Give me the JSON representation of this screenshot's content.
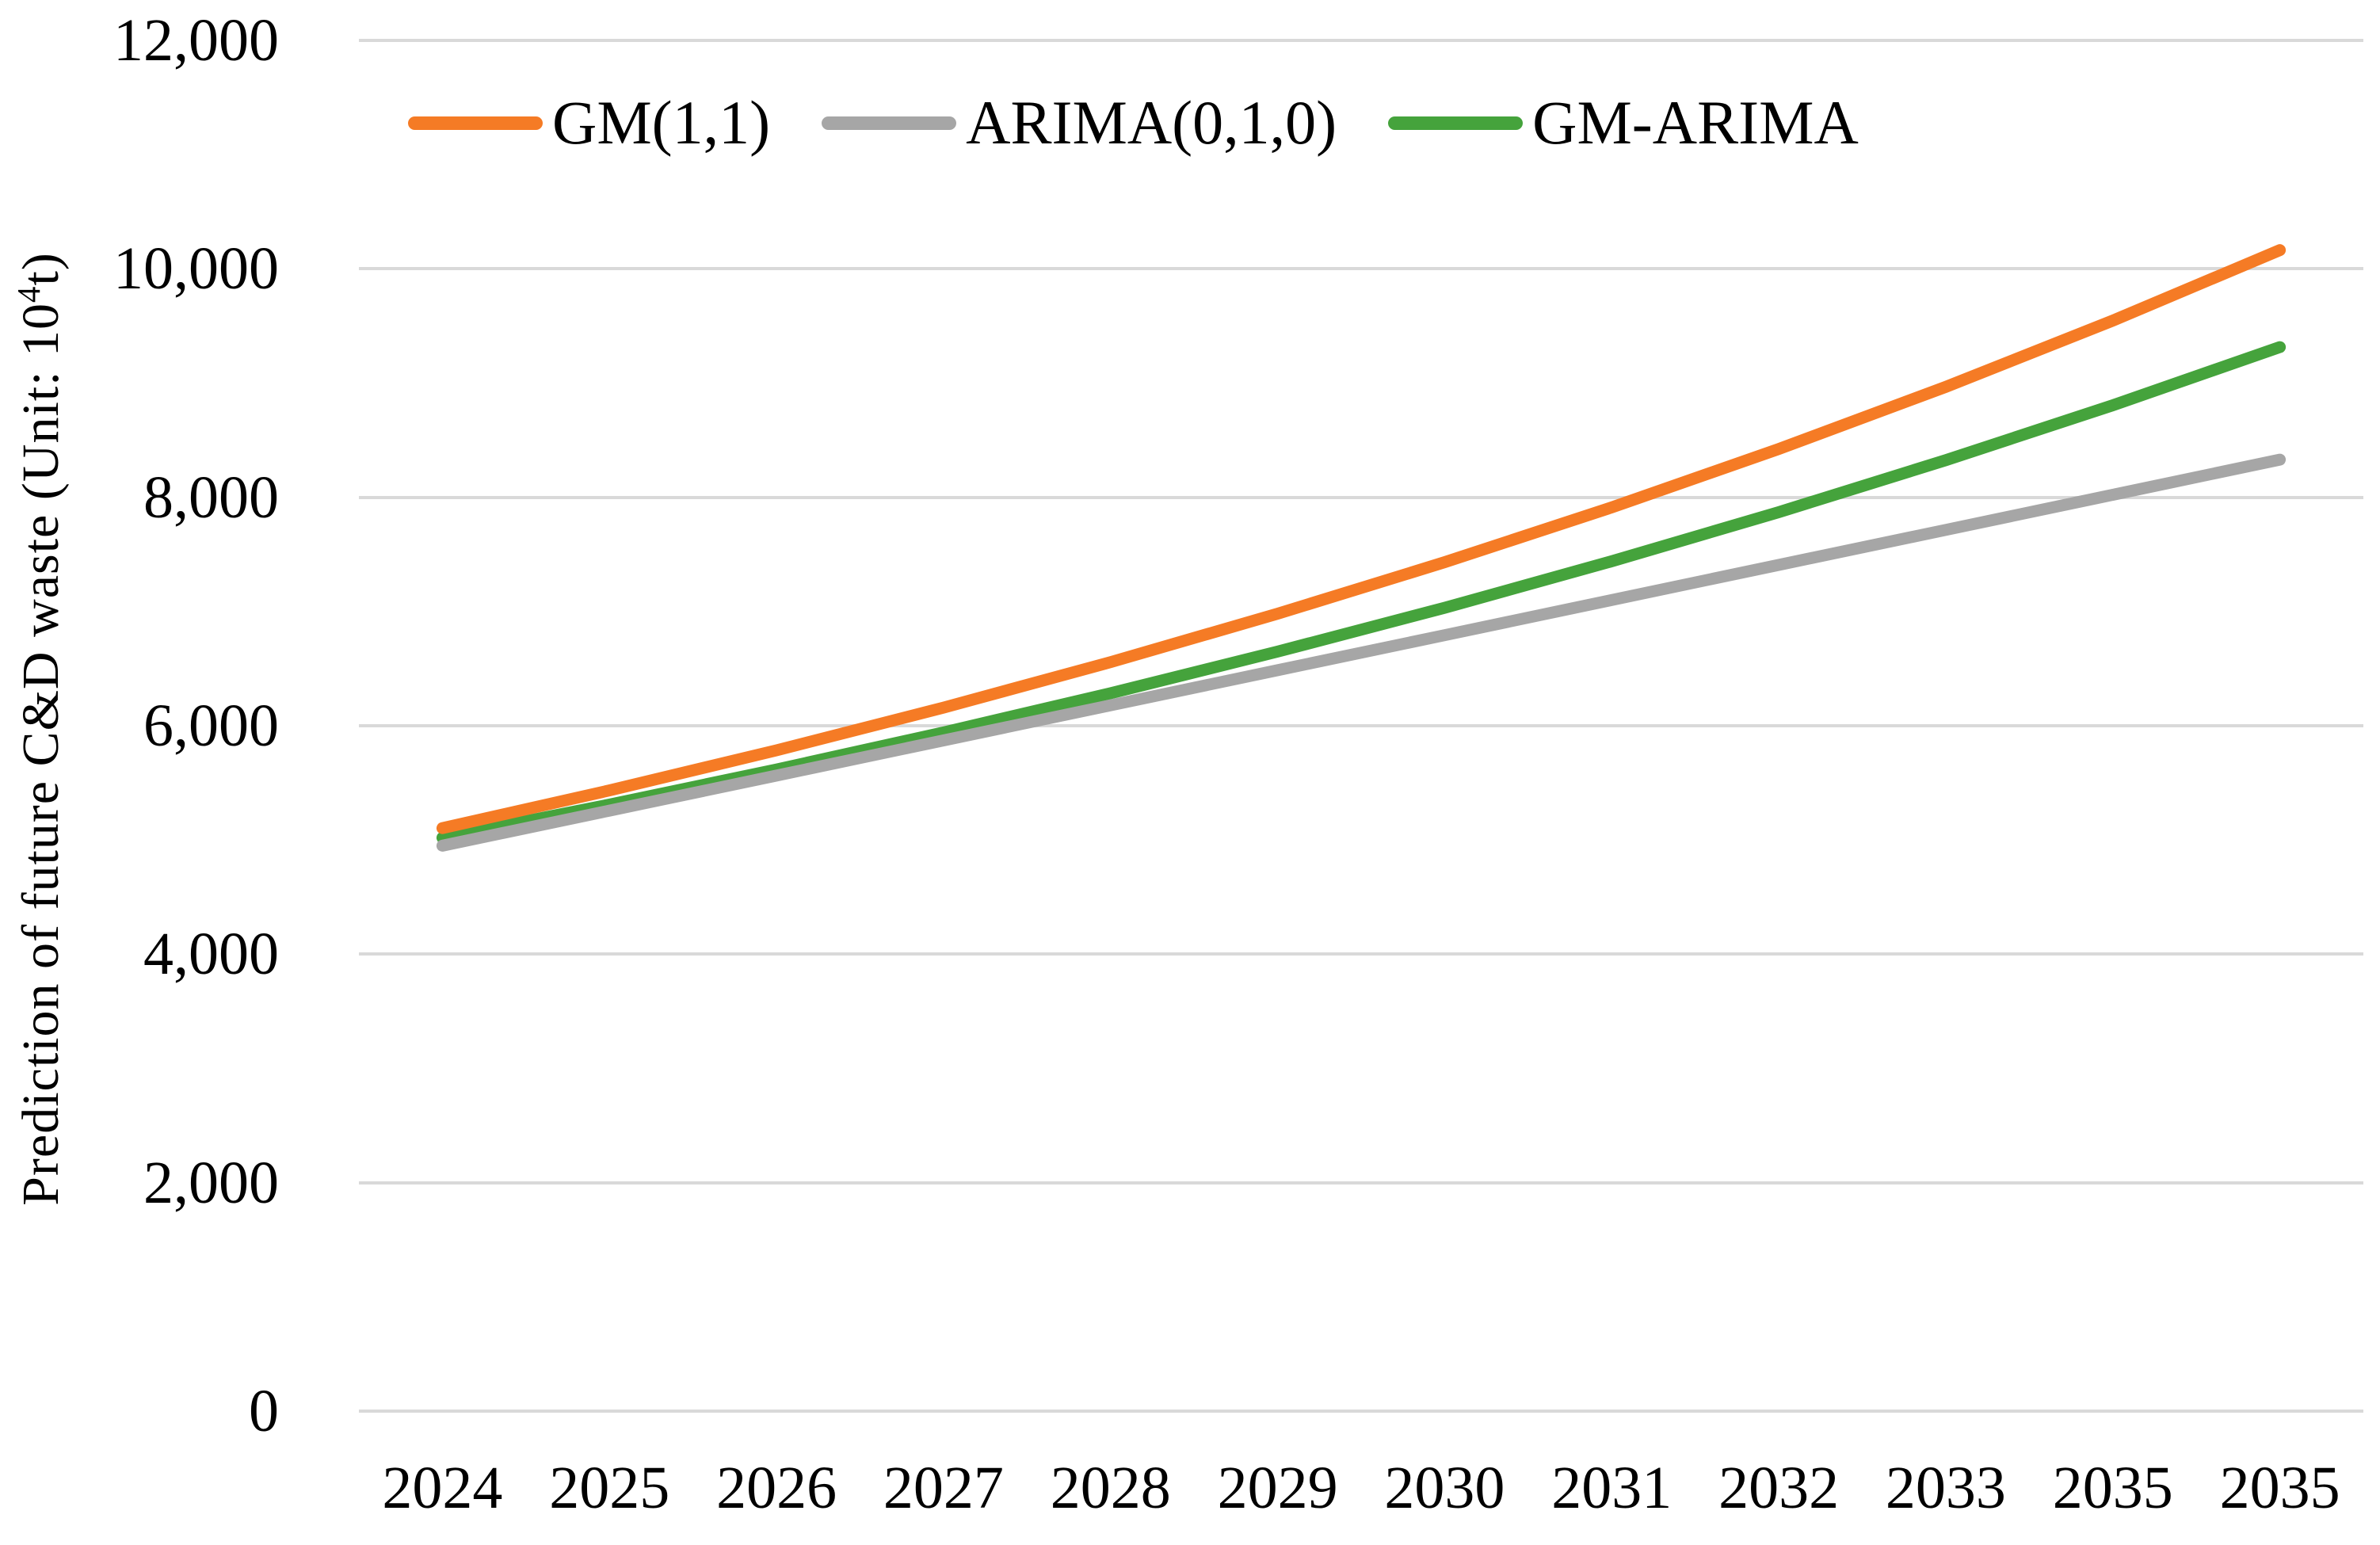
{
  "figure": {
    "y_axis_title_prefix": "Prediction of future C&D waste (Unit: 10",
    "y_axis_title_sup": "4",
    "y_axis_title_suffix": "t)"
  },
  "colors": {
    "gridline": "#D9D9D9",
    "background": "#FFFFFF",
    "text": "#000000",
    "gm_orange": "#F57B25",
    "arima_gray": "#A6A6A6",
    "gm_arima_green": "#45A33C"
  },
  "chart_data": {
    "type": "line",
    "title": "",
    "xlabel": "",
    "ylabel": "Prediction of future C&D waste (Unit: 10⁴t)",
    "ylim": [
      0,
      12000
    ],
    "grid": "horizontal",
    "legend_position": "top",
    "categories": [
      "2024",
      "2025",
      "2026",
      "2027",
      "2028",
      "2029",
      "2030",
      "2031",
      "2032",
      "2033",
      "2035",
      "2035"
    ],
    "y_ticks": [
      {
        "value": 0,
        "label": "0"
      },
      {
        "value": 2000,
        "label": "2,000"
      },
      {
        "value": 4000,
        "label": "4,000"
      },
      {
        "value": 6000,
        "label": "6,000"
      },
      {
        "value": 8000,
        "label": "8,000"
      },
      {
        "value": 10000,
        "label": "10,000"
      },
      {
        "value": 12000,
        "label": "12,000"
      }
    ],
    "series": [
      {
        "name": "GM(1,1)",
        "color": "#F57B25",
        "values": [
          5104,
          5434,
          5785,
          6159,
          6557,
          6981,
          7432,
          7912,
          8423,
          8967,
          9547,
          10164
        ]
      },
      {
        "name": "ARIMA(0,1,0)",
        "color": "#A6A6A6",
        "values": [
          4950,
          5257,
          5564,
          5872,
          6179,
          6486,
          6793,
          7101,
          7408,
          7715,
          8022,
          8330
        ]
      },
      {
        "name": "GM-ARIMA",
        "color": "#45A33C",
        "values": [
          5020,
          5310,
          5617,
          5942,
          6285,
          6649,
          7033,
          7440,
          7870,
          8325,
          8806,
          9315
        ]
      }
    ]
  }
}
